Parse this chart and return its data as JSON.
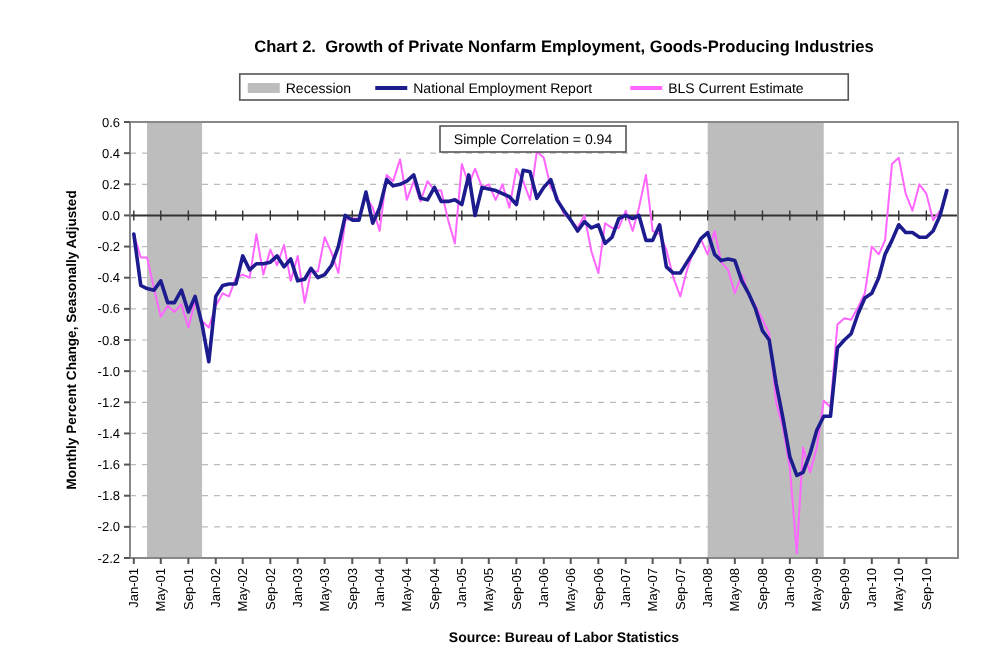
{
  "chart_data": {
    "type": "line",
    "title": "Chart 2.  Growth of Private Nonfarm Employment, Goods-Producing Industries",
    "ylabel": "Monthly Percent Change, Seasonally Adjusted",
    "annotations": [
      "Simple Correlation = 0.94",
      "Source: Bureau of Labor Statistics"
    ],
    "x": [
      "2001-01",
      "2001-02",
      "2001-03",
      "2001-04",
      "2001-05",
      "2001-06",
      "2001-07",
      "2001-08",
      "2001-09",
      "2001-10",
      "2001-11",
      "2001-12",
      "2002-01",
      "2002-02",
      "2002-03",
      "2002-04",
      "2002-05",
      "2002-06",
      "2002-07",
      "2002-08",
      "2002-09",
      "2002-10",
      "2002-11",
      "2002-12",
      "2003-01",
      "2003-02",
      "2003-03",
      "2003-04",
      "2003-05",
      "2003-06",
      "2003-07",
      "2003-08",
      "2003-09",
      "2003-10",
      "2003-11",
      "2003-12",
      "2004-01",
      "2004-02",
      "2004-03",
      "2004-04",
      "2004-05",
      "2004-06",
      "2004-07",
      "2004-08",
      "2004-09",
      "2004-10",
      "2004-11",
      "2004-12",
      "2005-01",
      "2005-02",
      "2005-03",
      "2005-04",
      "2005-05",
      "2005-06",
      "2005-07",
      "2005-08",
      "2005-09",
      "2005-10",
      "2005-11",
      "2005-12",
      "2006-01",
      "2006-02",
      "2006-03",
      "2006-04",
      "2006-05",
      "2006-06",
      "2006-07",
      "2006-08",
      "2006-09",
      "2006-10",
      "2006-11",
      "2006-12",
      "2007-01",
      "2007-02",
      "2007-03",
      "2007-04",
      "2007-05",
      "2007-06",
      "2007-07",
      "2007-08",
      "2007-09",
      "2007-10",
      "2007-11",
      "2007-12",
      "2008-01",
      "2008-02",
      "2008-03",
      "2008-04",
      "2008-05",
      "2008-06",
      "2008-07",
      "2008-08",
      "2008-09",
      "2008-10",
      "2008-11",
      "2008-12",
      "2009-01",
      "2009-02",
      "2009-03",
      "2009-04",
      "2009-05",
      "2009-06",
      "2009-07",
      "2009-08",
      "2009-09",
      "2009-10",
      "2009-11",
      "2009-12",
      "2010-01",
      "2010-02",
      "2010-03",
      "2010-04",
      "2010-05",
      "2010-06",
      "2010-07",
      "2010-08",
      "2010-09",
      "2010-10",
      "2010-11",
      "2010-12"
    ],
    "series": [
      {
        "name": "BLS Current Estimate",
        "color": "#ff66ff",
        "values": [
          -0.12,
          -0.27,
          -0.27,
          -0.47,
          -0.65,
          -0.58,
          -0.62,
          -0.57,
          -0.72,
          -0.55,
          -0.68,
          -0.72,
          -0.58,
          -0.5,
          -0.52,
          -0.4,
          -0.38,
          -0.4,
          -0.12,
          -0.38,
          -0.22,
          -0.32,
          -0.19,
          -0.42,
          -0.26,
          -0.56,
          -0.36,
          -0.36,
          -0.14,
          -0.24,
          -0.37,
          -0.03,
          -0.02,
          -0.02,
          0.12,
          0.05,
          -0.1,
          0.26,
          0.22,
          0.36,
          0.1,
          0.22,
          0.09,
          0.22,
          0.16,
          0.16,
          -0.03,
          -0.18,
          0.33,
          0.2,
          0.3,
          0.18,
          0.2,
          0.1,
          0.2,
          0.05,
          0.3,
          0.22,
          0.1,
          0.41,
          0.37,
          0.18,
          0.12,
          0.01,
          -0.03,
          -0.08,
          0.0,
          -0.23,
          -0.37,
          -0.05,
          -0.08,
          -0.08,
          0.03,
          -0.1,
          0.05,
          0.26,
          -0.1,
          -0.12,
          -0.22,
          -0.4,
          -0.52,
          -0.35,
          -0.22,
          -0.15,
          -0.25,
          -0.1,
          -0.3,
          -0.35,
          -0.5,
          -0.38,
          -0.5,
          -0.58,
          -0.67,
          -0.76,
          -1.2,
          -1.36,
          -1.62,
          -2.17,
          -1.49,
          -1.65,
          -1.49,
          -1.19,
          -1.23,
          -0.7,
          -0.66,
          -0.67,
          -0.59,
          -0.5,
          -0.2,
          -0.25,
          -0.16,
          0.33,
          0.37,
          0.14,
          0.03,
          0.2,
          0.14,
          -0.03,
          0.03,
          null
        ]
      },
      {
        "name": "National Employment Report",
        "color": "#1c1c8f",
        "values": [
          -0.12,
          -0.45,
          -0.47,
          -0.48,
          -0.42,
          -0.56,
          -0.56,
          -0.48,
          -0.62,
          -0.52,
          -0.7,
          -0.94,
          -0.52,
          -0.45,
          -0.44,
          -0.44,
          -0.26,
          -0.35,
          -0.31,
          -0.31,
          -0.3,
          -0.26,
          -0.33,
          -0.28,
          -0.42,
          -0.41,
          -0.34,
          -0.4,
          -0.38,
          -0.32,
          -0.2,
          0.0,
          -0.03,
          -0.03,
          0.15,
          -0.05,
          0.05,
          0.23,
          0.19,
          0.2,
          0.22,
          0.26,
          0.11,
          0.1,
          0.18,
          0.09,
          0.09,
          0.1,
          0.07,
          0.26,
          0.0,
          0.18,
          0.17,
          0.16,
          0.14,
          0.12,
          0.07,
          0.29,
          0.28,
          0.11,
          0.18,
          0.23,
          0.1,
          0.03,
          -0.03,
          -0.1,
          -0.04,
          -0.08,
          -0.06,
          -0.18,
          -0.14,
          -0.02,
          0.0,
          -0.02,
          0.0,
          -0.16,
          -0.16,
          -0.06,
          -0.33,
          -0.37,
          -0.37,
          -0.3,
          -0.23,
          -0.15,
          -0.11,
          -0.25,
          -0.29,
          -0.28,
          -0.29,
          -0.42,
          -0.5,
          -0.6,
          -0.74,
          -0.8,
          -1.08,
          -1.3,
          -1.55,
          -1.67,
          -1.65,
          -1.53,
          -1.38,
          -1.29,
          -1.29,
          -0.85,
          -0.8,
          -0.76,
          -0.63,
          -0.53,
          -0.5,
          -0.4,
          -0.25,
          -0.16,
          -0.06,
          -0.11,
          -0.11,
          -0.14,
          -0.14,
          -0.1,
          0.0,
          0.16
        ]
      }
    ],
    "bands": [
      {
        "axis": "x",
        "from": "2001-03",
        "to": "2001-11",
        "label": "Recession",
        "color": "#bdbdbd"
      },
      {
        "axis": "x",
        "from": "2008-01",
        "to": "2009-06",
        "color": "#bdbdbd"
      }
    ],
    "ref_lines": [
      {
        "axis": "y",
        "value": 0,
        "color": "#333333"
      }
    ],
    "xlim": [
      "2000-12-15",
      "2011-01-20"
    ],
    "xticks": [
      {
        "value": "2001-01",
        "label": "Jan-01"
      },
      {
        "value": "2001-05",
        "label": "May-01"
      },
      {
        "value": "2001-09",
        "label": "Sep-01"
      },
      {
        "value": "2002-01",
        "label": "Jan-02"
      },
      {
        "value": "2002-05",
        "label": "May-02"
      },
      {
        "value": "2002-09",
        "label": "Sep-02"
      },
      {
        "value": "2003-01",
        "label": "Jan-03"
      },
      {
        "value": "2003-05",
        "label": "May-03"
      },
      {
        "value": "2003-09",
        "label": "Sep-03"
      },
      {
        "value": "2004-01",
        "label": "Jan-04"
      },
      {
        "value": "2004-05",
        "label": "May-04"
      },
      {
        "value": "2004-09",
        "label": "Sep-04"
      },
      {
        "value": "2005-01",
        "label": "Jan-05"
      },
      {
        "value": "2005-05",
        "label": "May-05"
      },
      {
        "value": "2005-09",
        "label": "Sep-05"
      },
      {
        "value": "2006-01",
        "label": "Jan-06"
      },
      {
        "value": "2006-05",
        "label": "May-06"
      },
      {
        "value": "2006-09",
        "label": "Sep-06"
      },
      {
        "value": "2007-01",
        "label": "Jan-07"
      },
      {
        "value": "2007-05",
        "label": "May-07"
      },
      {
        "value": "2007-09",
        "label": "Sep-07"
      },
      {
        "value": "2008-01",
        "label": "Jan-08"
      },
      {
        "value": "2008-05",
        "label": "May-08"
      },
      {
        "value": "2008-09",
        "label": "Sep-08"
      },
      {
        "value": "2009-01",
        "label": "Jan-09"
      },
      {
        "value": "2009-05",
        "label": "May-09"
      },
      {
        "value": "2009-09",
        "label": "Sep-09"
      },
      {
        "value": "2010-01",
        "label": "Jan-10"
      },
      {
        "value": "2010-05",
        "label": "May-10"
      },
      {
        "value": "2010-09",
        "label": "Sep-10"
      }
    ],
    "ylim": [
      -2.2,
      0.6
    ],
    "yticks": [
      {
        "value": 0.6,
        "label": "0.6"
      },
      {
        "value": 0.4,
        "label": "0.4"
      },
      {
        "value": 0.2,
        "label": "0.2"
      },
      {
        "value": 0,
        "label": "0.0"
      },
      {
        "value": -0.2,
        "label": "-0.2"
      },
      {
        "value": -0.4,
        "label": "-0.4"
      },
      {
        "value": -0.6,
        "label": "-0.6"
      },
      {
        "value": -0.8,
        "label": "-0.8"
      },
      {
        "value": -1,
        "label": "-1.0"
      },
      {
        "value": -1.2,
        "label": "-1.2"
      },
      {
        "value": -1.4,
        "label": "-1.4"
      },
      {
        "value": -1.6,
        "label": "-1.6"
      },
      {
        "value": -1.8,
        "label": "-1.8"
      },
      {
        "value": -2,
        "label": "-2.0"
      },
      {
        "value": -2.2,
        "label": "-2.2"
      }
    ],
    "grid": "y",
    "legend": "top",
    "marker": "none",
    "line_style": "solid"
  }
}
